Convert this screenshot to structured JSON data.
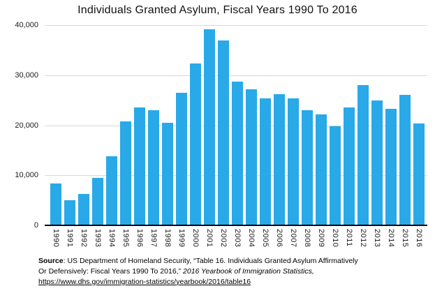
{
  "title": "Individuals Granted Asylum, Fiscal Years 1990 To 2016",
  "colors": {
    "bar": "#29A9E8",
    "gridline": "#d8d8d8",
    "axis": "#000000",
    "text": "#1a1a1a"
  },
  "chart_data": {
    "type": "bar",
    "title": "Individuals Granted Asylum, Fiscal Years 1990 To 2016",
    "categories": [
      "1990",
      "1991",
      "1992",
      "1993",
      "1994",
      "1995",
      "1996",
      "1997",
      "1998",
      "1999",
      "2000",
      "2001",
      "2002",
      "2003",
      "2004",
      "2005",
      "2006",
      "2007",
      "2008",
      "2009",
      "2010",
      "2011",
      "2012",
      "2013",
      "2014",
      "2015",
      "2016"
    ],
    "values": [
      8400,
      5000,
      6300,
      9500,
      13800,
      20700,
      23500,
      23000,
      20500,
      26500,
      32400,
      39100,
      36900,
      28700,
      27200,
      25300,
      26200,
      25300,
      23000,
      22200,
      19800,
      23600,
      28000,
      25000,
      23300,
      26000,
      20400
    ],
    "xlabel": "",
    "ylabel": "",
    "ylim": [
      0,
      40000
    ],
    "yticks": [
      0,
      10000,
      20000,
      30000,
      40000
    ],
    "ytick_labels": [
      "0",
      "10,000",
      "20,000",
      "30,000",
      "40,000"
    ],
    "grid": "horizontal",
    "legend": "none",
    "bar_color": "#29A9E8"
  },
  "footer": {
    "source_label": "Source",
    "source_text": ": US Department of Homeland Security, “Table 16. Individuals Granted Asylum Affirmatively Or Defensively: Fiscal Years 1990 To 2016,”  ",
    "citation_italic": "2016 Yearbook of Immigration Statistics,",
    "link_text": "https://www.dhs.gov/immigration-statistics/yearbook/2016/table16"
  }
}
